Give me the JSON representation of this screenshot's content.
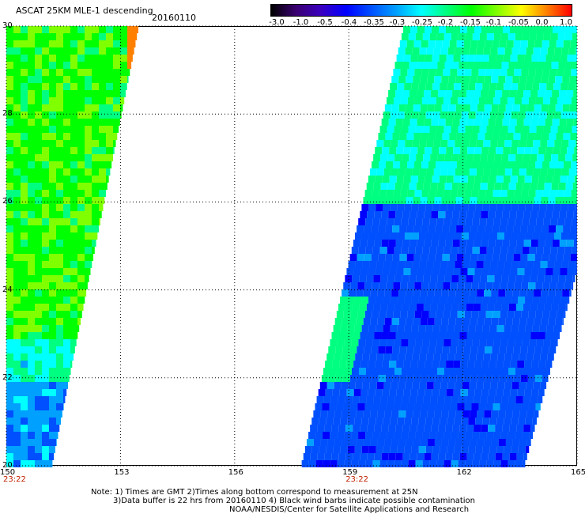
{
  "header": {
    "title": "ASCAT 25KM MLE-1 descending",
    "date": "20160110"
  },
  "colorbar": {
    "labels": [
      "-3.0",
      "-1.0",
      "-0.5",
      "-0.4",
      "-0.35",
      "-0.3",
      "-0.25",
      "-0.2",
      "-0.15",
      "-0.1",
      "-0.05",
      "0.0",
      "1.0"
    ],
    "colors": [
      "#000000",
      "#3a0070",
      "#3a00c0",
      "#0000ff",
      "#0050ff",
      "#00a0ff",
      "#00ffff",
      "#00ff80",
      "#00ff00",
      "#80ff00",
      "#ffff00",
      "#ff8000",
      "#ff0000"
    ]
  },
  "map": {
    "lon_ticks": [
      "150",
      "153",
      "156",
      "159",
      "162",
      "165"
    ],
    "lat_ticks": [
      "30",
      "28",
      "26",
      "24",
      "22",
      "20"
    ],
    "lon_range": [
      150,
      165
    ],
    "lat_range": [
      20,
      30
    ],
    "time_labels": [
      {
        "text": "23:22",
        "lon": 150
      },
      {
        "text": "23:22",
        "lon": 159
      }
    ],
    "grid": "dotted"
  },
  "footer": {
    "note_lines": [
      "Note: 1) Times are GMT 2)Times along bottom correspond to measurement at 25N",
      "3)Data buffer is 22 hrs from 20160110 4) Black wind barbs indicate possible contamination"
    ],
    "credit": "NOAA/NESDIS/Center for Satellite Applications and Research"
  }
}
